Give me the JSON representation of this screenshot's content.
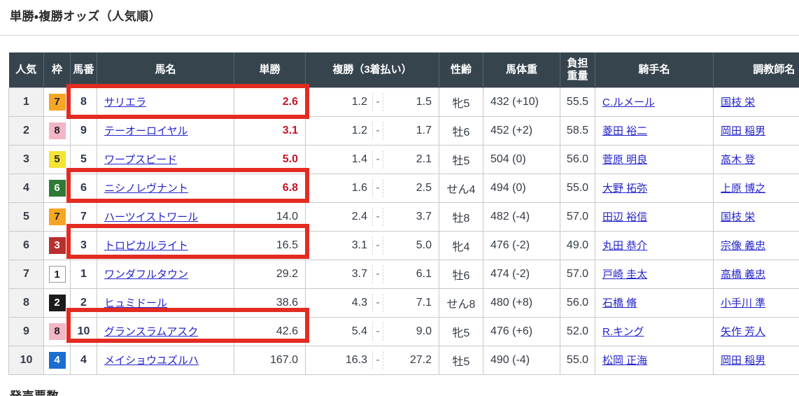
{
  "page": {
    "title": "単勝・複勝オッズ（人気順）",
    "footer_heading": "発売票数"
  },
  "table": {
    "headers": {
      "rank": "人気",
      "frame": "枠",
      "number": "馬番",
      "horse": "馬名",
      "win": "単勝",
      "place": "複勝（3着払い）",
      "sex_age": "性齢",
      "weight": "馬体重",
      "load": "負担重量",
      "jockey": "騎手名",
      "trainer": "調教師名"
    },
    "place_separator": "-",
    "rows": [
      {
        "rank": "1",
        "frame": "7",
        "number": "8",
        "horse": "サリエラ",
        "win": "2.6",
        "win_hot": true,
        "place_low": "1.2",
        "place_high": "1.5",
        "sex_age": "牝5",
        "weight": "432 (+10)",
        "load": "55.5",
        "jockey": "C.ルメール",
        "trainer": "国枝 栄",
        "highlighted": true
      },
      {
        "rank": "2",
        "frame": "8",
        "number": "9",
        "horse": "テーオーロイヤル",
        "win": "3.1",
        "win_hot": true,
        "place_low": "1.2",
        "place_high": "1.7",
        "sex_age": "牡6",
        "weight": "452 (+2)",
        "load": "58.5",
        "jockey": "菱田 裕二",
        "trainer": "岡田 稲男",
        "highlighted": false
      },
      {
        "rank": "3",
        "frame": "5",
        "number": "5",
        "horse": "ワープスピード",
        "win": "5.0",
        "win_hot": true,
        "place_low": "1.4",
        "place_high": "2.1",
        "sex_age": "牡5",
        "weight": "504 (0)",
        "load": "56.0",
        "jockey": "菅原 明良",
        "trainer": "高木 登",
        "highlighted": false
      },
      {
        "rank": "4",
        "frame": "6",
        "number": "6",
        "horse": "ニシノレヴナント",
        "win": "6.8",
        "win_hot": true,
        "place_low": "1.6",
        "place_high": "2.5",
        "sex_age": "せん4",
        "weight": "494 (0)",
        "load": "55.0",
        "jockey": "大野 拓弥",
        "trainer": "上原 博之",
        "highlighted": true
      },
      {
        "rank": "5",
        "frame": "7",
        "number": "7",
        "horse": "ハーツイストワール",
        "win": "14.0",
        "win_hot": false,
        "place_low": "2.4",
        "place_high": "3.7",
        "sex_age": "牡8",
        "weight": "482 (-4)",
        "load": "57.0",
        "jockey": "田辺 裕信",
        "trainer": "国枝 栄",
        "highlighted": false
      },
      {
        "rank": "6",
        "frame": "3",
        "number": "3",
        "horse": "トロピカルライト",
        "win": "16.5",
        "win_hot": false,
        "place_low": "3.1",
        "place_high": "5.0",
        "sex_age": "牝4",
        "weight": "476 (-2)",
        "load": "49.0",
        "jockey": "丸田 恭介",
        "trainer": "宗像 義忠",
        "highlighted": true
      },
      {
        "rank": "7",
        "frame": "1",
        "number": "1",
        "horse": "ワンダフルタウン",
        "win": "29.2",
        "win_hot": false,
        "place_low": "3.7",
        "place_high": "6.1",
        "sex_age": "牡6",
        "weight": "474 (-2)",
        "load": "57.0",
        "jockey": "戸崎 圭太",
        "trainer": "高橋 義忠",
        "highlighted": false
      },
      {
        "rank": "8",
        "frame": "2",
        "number": "2",
        "horse": "ヒュミドール",
        "win": "38.6",
        "win_hot": false,
        "place_low": "4.3",
        "place_high": "7.1",
        "sex_age": "せん8",
        "weight": "480 (+8)",
        "load": "56.0",
        "jockey": "石橋 脩",
        "trainer": "小手川 準",
        "highlighted": false
      },
      {
        "rank": "9",
        "frame": "8",
        "number": "10",
        "horse": "グランスラムアスク",
        "win": "42.6",
        "win_hot": false,
        "place_low": "5.4",
        "place_high": "9.0",
        "sex_age": "牝5",
        "weight": "476 (+6)",
        "load": "52.0",
        "jockey": "R.キング",
        "trainer": "矢作 芳人",
        "highlighted": true
      },
      {
        "rank": "10",
        "frame": "4",
        "number": "4",
        "horse": "メイショウユズルハ",
        "win": "167.0",
        "win_hot": false,
        "place_low": "16.3",
        "place_high": "27.2",
        "sex_age": "牡5",
        "weight": "490 (-4)",
        "load": "55.0",
        "jockey": "松岡 正海",
        "trainer": "岡田 稲男",
        "highlighted": false
      }
    ]
  },
  "colors": {
    "header_bg": "#36444e",
    "highlight_red": "#e32b22",
    "hot_odds_red": "#c41428",
    "link_blue": "#2424cc",
    "frame": {
      "1": {
        "bg": "#ffffff",
        "fg": "#222222",
        "border": "#999999"
      },
      "2": {
        "bg": "#1c1c1c",
        "fg": "#ffffff"
      },
      "3": {
        "bg": "#b8302e",
        "fg": "#ffffff"
      },
      "4": {
        "bg": "#1b6dd0",
        "fg": "#ffffff"
      },
      "5": {
        "bg": "#f6e334",
        "fg": "#222222"
      },
      "6": {
        "bg": "#2d7b36",
        "fg": "#ffffff"
      },
      "7": {
        "bg": "#f6a624",
        "fg": "#222222"
      },
      "8": {
        "bg": "#f2b6c6",
        "fg": "#222222"
      }
    }
  }
}
